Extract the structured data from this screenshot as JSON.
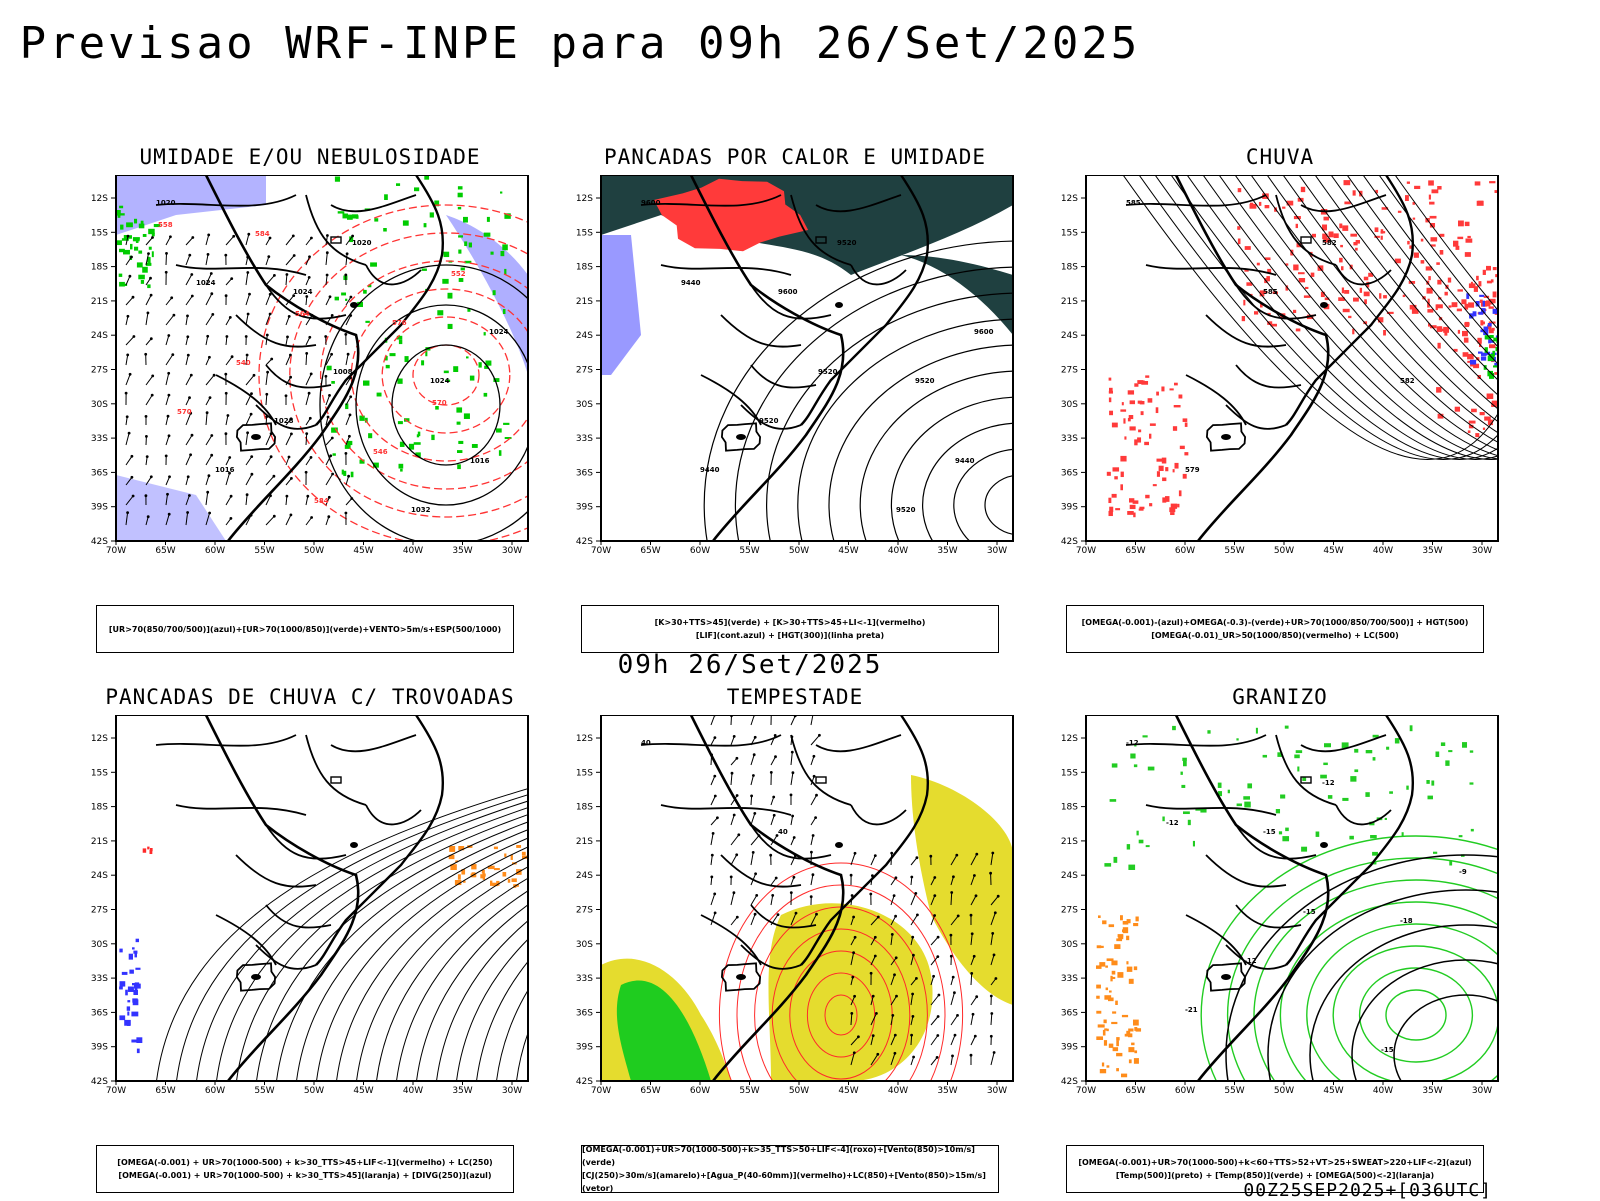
{
  "main_title": "Previsao WRF-INPE  para 09h 26/Set/2025",
  "mid_title": "09h 26/Set/2025",
  "footer": "00Z25SEP2025+[036UTC]",
  "axes": {
    "lat_labels": [
      "12S",
      "15S",
      "18S",
      "21S",
      "24S",
      "27S",
      "30S",
      "33S",
      "36S",
      "39S",
      "42S"
    ],
    "lon_labels": [
      "70W",
      "65W",
      "60W",
      "55W",
      "50W",
      "45W",
      "40W",
      "35W",
      "30W"
    ]
  },
  "panels": [
    {
      "title": "UMIDADE E/OU NEBULOSIDADE",
      "legend": [
        "[UR>70(850/700/500)](azul)+[UR>70(1000/850)](verde)+VENTO>5m/s+ESP(500/1000)"
      ],
      "labels": [
        "1020",
        "1024",
        "1024",
        "1016",
        "1020",
        "1024",
        "1028",
        "1032",
        "1024",
        "1008",
        "1016",
        "584",
        "576",
        "570",
        "584",
        "552",
        "540",
        "546",
        "558",
        "564",
        "570"
      ]
    },
    {
      "title": "PANCADAS POR CALOR E UMIDADE",
      "legend": [
        "[K>30+TTS>45](verde) + [K>30+TTS>45+LI<-1](vermelho)",
        "[LIF](cont.azul) + [HGT(300)](linha preta)"
      ],
      "labels": [
        "9600",
        "9600",
        "9520",
        "9440",
        "9520",
        "9600",
        "9520",
        "9520",
        "9440",
        "9520",
        "9440"
      ]
    },
    {
      "title": "CHUVA",
      "legend": [
        "[OMEGA(-0.001)-(azul)+OMEGA(-0.3)-(verde)+UR>70(1000/850/700/500)] + HGT(500)",
        "[OMEGA(-0.01)_UR>50(1000/850)(vermelho) + LC(500)"
      ],
      "labels": [
        "585",
        "585",
        "582",
        "579",
        "582"
      ]
    },
    {
      "title": "PANCADAS DE CHUVA C/ TROVOADAS",
      "legend": [
        "[OMEGA(-0.001) + UR>70(1000-500) + k>30_TTS>45+LIF<-1](vermelho) + LC(250)",
        "[OMEGA(-0.001) + UR>70(1000-500) + k>30_TTS>45](laranja) + [DIVG(250)](azul)"
      ],
      "labels": []
    },
    {
      "title": "TEMPESTADE",
      "legend": [
        "[OMEGA(-0.001)+UR>70(1000-500)+k>35_TTS>50+LIF<-4](roxo)+[Vento(850)>10m/s](verde)",
        "[CJ(250)>30m/s](amarelo)+[Agua_P(40-60mm)](vermelho)+LC(850)+[Vento(850)>15m/s](vetor)"
      ],
      "labels": [
        "40",
        "40"
      ]
    },
    {
      "title": "GRANIZO",
      "legend": [
        "[OMEGA(-0.001)+UR>70(1000-500)+k<60+TTS>52+VT>25+SWEAT>220+LIF<-2](azul)",
        "[Temp(500)](preto) + [Temp(850)](verde) + [OMEGA(500)<-2](laranja)"
      ],
      "labels": [
        "-12",
        "-15",
        "-18",
        "-21",
        "-12",
        "-9",
        "-12",
        "-15",
        "-12",
        "-15"
      ]
    }
  ],
  "colors": {
    "humidity_blue": "#a6a6ff",
    "humidity_green": "#00cc00",
    "thickness_red": "#ff3333",
    "heat_dark": "#1f4040",
    "heat_red": "#ff3a3a",
    "lif_blue": "#3333ff",
    "rain_red": "#ff3a3a",
    "storm_yellow": "#e5dc2e",
    "storm_green": "#1fcc1f",
    "storm_red": "#ff2a2a",
    "thunder_orange": "#ff8c1a",
    "hail_green": "#22cc22",
    "hail_orange": "#ff8c1a"
  }
}
